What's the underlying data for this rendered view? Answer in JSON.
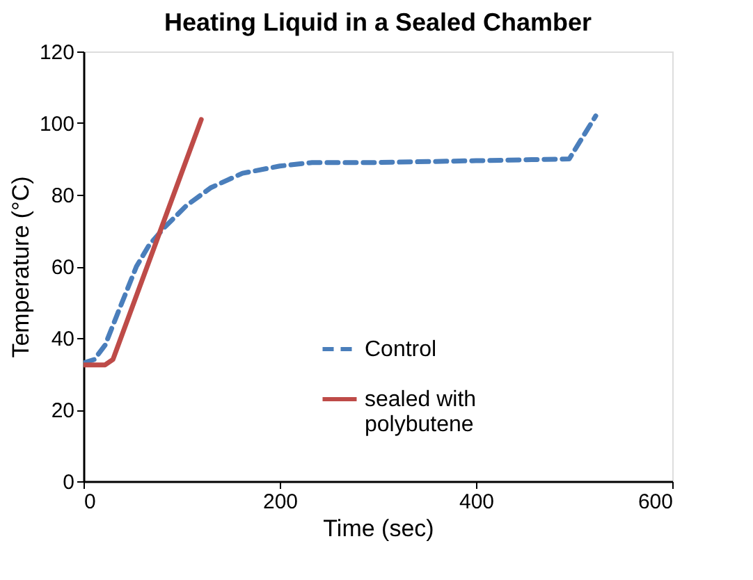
{
  "chart_data": {
    "type": "line",
    "title": "Heating Liquid in a Sealed Chamber",
    "xlabel": "Time (sec)",
    "ylabel": "Temperature (°C)",
    "xlim": [
      0,
      600
    ],
    "xticks": [
      0,
      200,
      400,
      600
    ],
    "ylim": [
      0,
      120
    ],
    "yticks": [
      0,
      20,
      40,
      60,
      80,
      100,
      120
    ],
    "grid": false,
    "legend": "bottom right",
    "marker": "none",
    "series": [
      {
        "name": "Control",
        "color": "#4a7ebb",
        "line_style": "dashed",
        "x": [
          0,
          11,
          22,
          35,
          54,
          67,
          83,
          105,
          130,
          162,
          200,
          233,
          300,
          400,
          495,
          522
        ],
        "values": [
          33,
          34,
          38,
          47,
          60,
          66,
          71,
          77,
          82,
          86,
          88,
          89,
          89,
          89.5,
          90,
          102
        ]
      },
      {
        "name": "sealed with polybutene",
        "color": "#be4b48",
        "line_style": "solid",
        "x": [
          0,
          22,
          30,
          120
        ],
        "values": [
          32.5,
          32.5,
          34,
          101
        ]
      }
    ]
  }
}
